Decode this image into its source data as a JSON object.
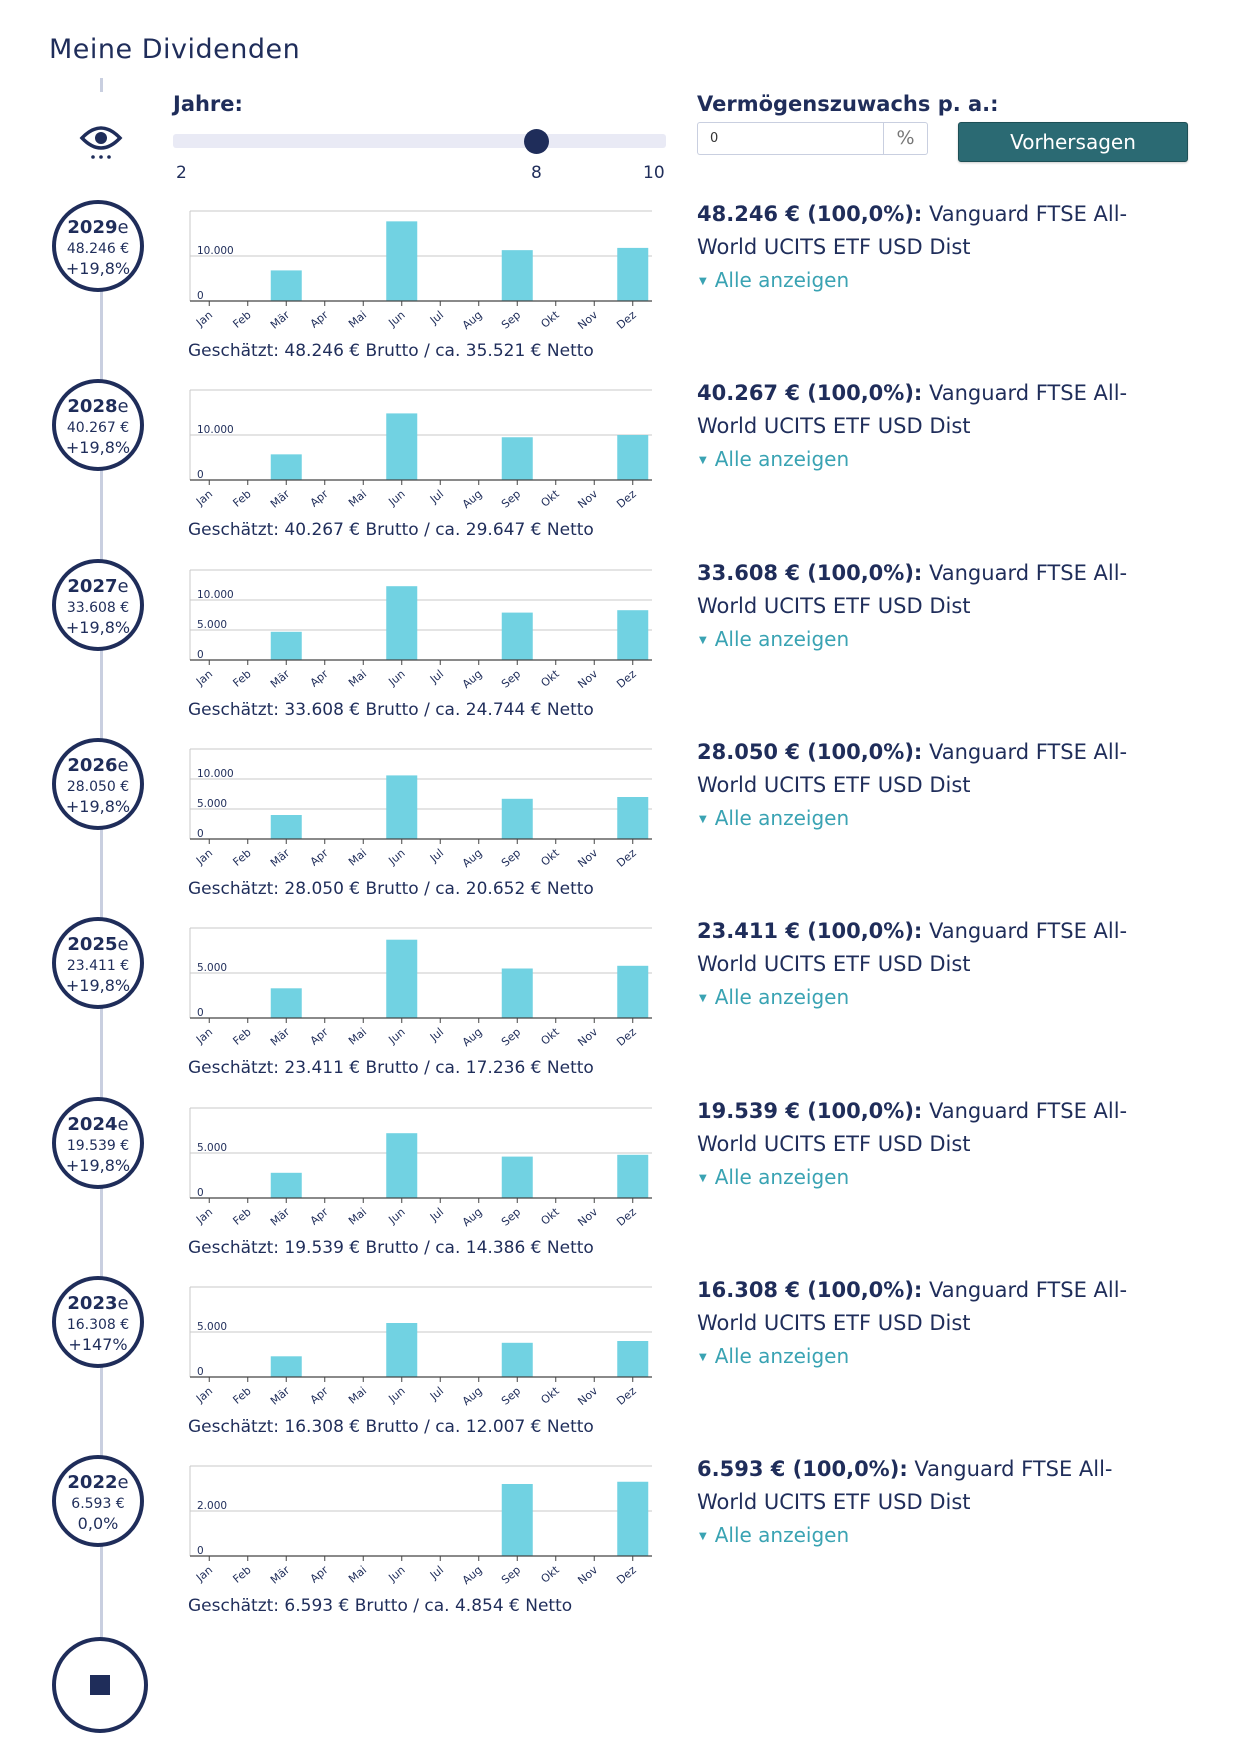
{
  "page_title": "Meine Dividenden",
  "controls": {
    "years_label": "Jahre:",
    "years_min": "2",
    "years_value": "8",
    "years_max": "10",
    "growth_label": "Vermögenszuwachs p. a.:",
    "growth_value": "0",
    "growth_unit": "%",
    "predict_label": "Vorhersagen"
  },
  "colors": {
    "bar": "#71d2e2",
    "navy": "#1f2d5a",
    "teal_button": "#2b6a73",
    "link": "#3aa3b3"
  },
  "icons": {
    "eye": "eye-icon",
    "stop": "stop-icon",
    "chevron": "chevron-down-icon"
  },
  "years": [
    {
      "year": "2029",
      "suffix": "e",
      "amount": "48.246 €",
      "change": "+19,8%",
      "caption": "Geschätzt: 48.246 € Brutto / ca. 35.521 € Netto",
      "position_amount": "48.246 € (100,0%):",
      "position_name": " Vanguard FTSE All-World UCITS ETF USD Dist",
      "show_all": "Alle anzeigen"
    },
    {
      "year": "2028",
      "suffix": "e",
      "amount": "40.267 €",
      "change": "+19,8%",
      "caption": "Geschätzt: 40.267 € Brutto / ca. 29.647 € Netto",
      "position_amount": "40.267 € (100,0%):",
      "position_name": " Vanguard FTSE All-World UCITS ETF USD Dist",
      "show_all": "Alle anzeigen"
    },
    {
      "year": "2027",
      "suffix": "e",
      "amount": "33.608 €",
      "change": "+19,8%",
      "caption": "Geschätzt: 33.608 € Brutto / ca. 24.744 € Netto",
      "position_amount": "33.608 € (100,0%):",
      "position_name": " Vanguard FTSE All-World UCITS ETF USD Dist",
      "show_all": "Alle anzeigen"
    },
    {
      "year": "2026",
      "suffix": "e",
      "amount": "28.050 €",
      "change": "+19,8%",
      "caption": "Geschätzt: 28.050 € Brutto / ca. 20.652 € Netto",
      "position_amount": "28.050 € (100,0%):",
      "position_name": " Vanguard FTSE All-World UCITS ETF USD Dist",
      "show_all": "Alle anzeigen"
    },
    {
      "year": "2025",
      "suffix": "e",
      "amount": "23.411 €",
      "change": "+19,8%",
      "caption": "Geschätzt: 23.411 € Brutto / ca. 17.236 € Netto",
      "position_amount": "23.411 € (100,0%):",
      "position_name": " Vanguard FTSE All-World UCITS ETF USD Dist",
      "show_all": "Alle anzeigen"
    },
    {
      "year": "2024",
      "suffix": "e",
      "amount": "19.539 €",
      "change": "+19,8%",
      "caption": "Geschätzt: 19.539 € Brutto / ca. 14.386 € Netto",
      "position_amount": "19.539 € (100,0%):",
      "position_name": " Vanguard FTSE All-World UCITS ETF USD Dist",
      "show_all": "Alle anzeigen"
    },
    {
      "year": "2023",
      "suffix": "e",
      "amount": "16.308 €",
      "change": "+147%",
      "caption": "Geschätzt: 16.308 € Brutto / ca. 12.007 € Netto",
      "position_amount": "16.308 € (100,0%):",
      "position_name": " Vanguard FTSE All-World UCITS ETF USD Dist",
      "show_all": "Alle anzeigen"
    },
    {
      "year": "2022",
      "suffix": "e",
      "amount": "6.593 €",
      "change": "0,0%",
      "caption": "Geschätzt: 6.593 € Brutto / ca. 4.854 € Netto",
      "position_amount": "6.593 € (100,0%):",
      "position_name": " Vanguard FTSE All-World UCITS ETF USD Dist",
      "show_all": "Alle anzeigen"
    }
  ],
  "chart_data": [
    {
      "type": "bar",
      "title": "2029e",
      "categories": [
        "Jan",
        "Feb",
        "Mär",
        "Apr",
        "Mai",
        "Jun",
        "Jul",
        "Aug",
        "Sep",
        "Okt",
        "Nov",
        "Dez"
      ],
      "values": [
        0,
        0,
        6800,
        0,
        0,
        17700,
        0,
        0,
        11300,
        0,
        0,
        11800
      ],
      "yticks": [
        0,
        10000
      ],
      "ytick_labels": [
        "0",
        "10.000"
      ],
      "ylim": [
        0,
        20000
      ]
    },
    {
      "type": "bar",
      "title": "2028e",
      "categories": [
        "Jan",
        "Feb",
        "Mär",
        "Apr",
        "Mai",
        "Jun",
        "Jul",
        "Aug",
        "Sep",
        "Okt",
        "Nov",
        "Dez"
      ],
      "values": [
        0,
        0,
        5700,
        0,
        0,
        14800,
        0,
        0,
        9500,
        0,
        0,
        10000
      ],
      "yticks": [
        0,
        10000
      ],
      "ytick_labels": [
        "0",
        "10.000"
      ],
      "ylim": [
        0,
        20000
      ]
    },
    {
      "type": "bar",
      "title": "2027e",
      "categories": [
        "Jan",
        "Feb",
        "Mär",
        "Apr",
        "Mai",
        "Jun",
        "Jul",
        "Aug",
        "Sep",
        "Okt",
        "Nov",
        "Dez"
      ],
      "values": [
        0,
        0,
        4700,
        0,
        0,
        12300,
        0,
        0,
        7900,
        0,
        0,
        8300
      ],
      "yticks": [
        0,
        5000,
        10000
      ],
      "ytick_labels": [
        "0",
        "5.000",
        "10.000"
      ],
      "ylim": [
        0,
        15000
      ]
    },
    {
      "type": "bar",
      "title": "2026e",
      "categories": [
        "Jan",
        "Feb",
        "Mär",
        "Apr",
        "Mai",
        "Jun",
        "Jul",
        "Aug",
        "Sep",
        "Okt",
        "Nov",
        "Dez"
      ],
      "values": [
        0,
        0,
        4000,
        0,
        0,
        10600,
        0,
        0,
        6700,
        0,
        0,
        7000
      ],
      "yticks": [
        0,
        5000,
        10000
      ],
      "ytick_labels": [
        "0",
        "5.000",
        "10.000"
      ],
      "ylim": [
        0,
        15000
      ]
    },
    {
      "type": "bar",
      "title": "2025e",
      "categories": [
        "Jan",
        "Feb",
        "Mär",
        "Apr",
        "Mai",
        "Jun",
        "Jul",
        "Aug",
        "Sep",
        "Okt",
        "Nov",
        "Dez"
      ],
      "values": [
        0,
        0,
        3300,
        0,
        0,
        8700,
        0,
        0,
        5500,
        0,
        0,
        5800
      ],
      "yticks": [
        0,
        5000
      ],
      "ytick_labels": [
        "0",
        "5.000"
      ],
      "ylim": [
        0,
        10000
      ]
    },
    {
      "type": "bar",
      "title": "2024e",
      "categories": [
        "Jan",
        "Feb",
        "Mär",
        "Apr",
        "Mai",
        "Jun",
        "Jul",
        "Aug",
        "Sep",
        "Okt",
        "Nov",
        "Dez"
      ],
      "values": [
        0,
        0,
        2800,
        0,
        0,
        7200,
        0,
        0,
        4600,
        0,
        0,
        4800
      ],
      "yticks": [
        0,
        5000
      ],
      "ytick_labels": [
        "0",
        "5.000"
      ],
      "ylim": [
        0,
        10000
      ]
    },
    {
      "type": "bar",
      "title": "2023e",
      "categories": [
        "Jan",
        "Feb",
        "Mär",
        "Apr",
        "Mai",
        "Jun",
        "Jul",
        "Aug",
        "Sep",
        "Okt",
        "Nov",
        "Dez"
      ],
      "values": [
        0,
        0,
        2300,
        0,
        0,
        6000,
        0,
        0,
        3800,
        0,
        0,
        4000
      ],
      "yticks": [
        0,
        5000
      ],
      "ytick_labels": [
        "0",
        "5.000"
      ],
      "ylim": [
        0,
        10000
      ]
    },
    {
      "type": "bar",
      "title": "2022e",
      "categories": [
        "Jan",
        "Feb",
        "Mär",
        "Apr",
        "Mai",
        "Jun",
        "Jul",
        "Aug",
        "Sep",
        "Okt",
        "Nov",
        "Dez"
      ],
      "values": [
        0,
        0,
        0,
        0,
        0,
        0,
        0,
        0,
        3200,
        0,
        0,
        3300
      ],
      "yticks": [
        0,
        2000
      ],
      "ytick_labels": [
        "0",
        "2.000"
      ],
      "ylim": [
        0,
        4000
      ]
    }
  ]
}
